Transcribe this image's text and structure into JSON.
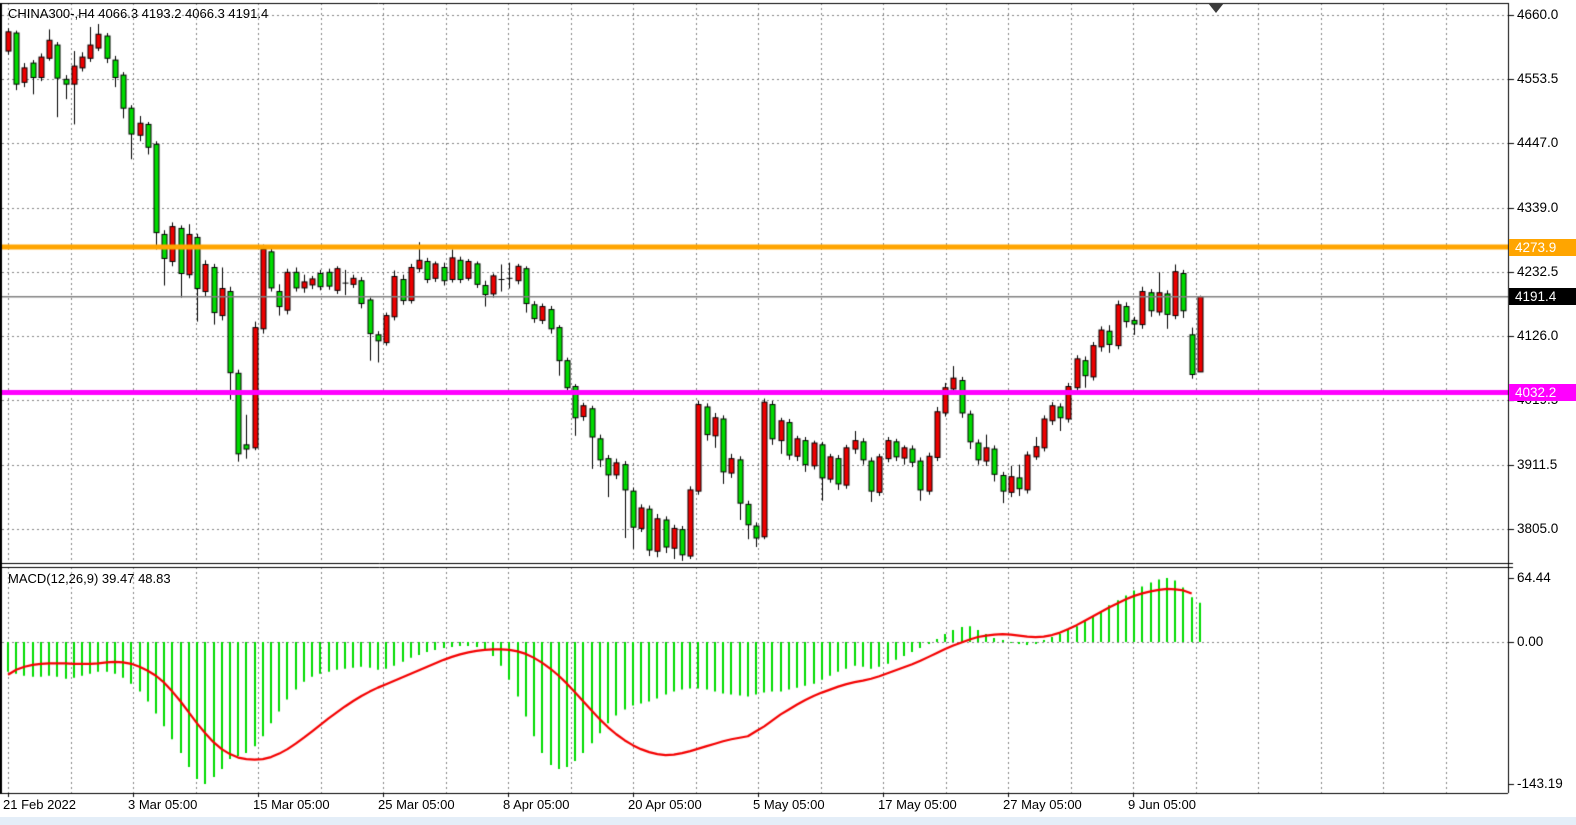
{
  "window": {
    "symbol_title": "CHINA300-,H4  4066.3 4193.2 4066.3 4191.4",
    "macd_label": "MACD(12,26,9) 39.47 48.83"
  },
  "colors": {
    "background": "#FFFFFF",
    "grid": "#848484",
    "bull_candle": "#EE0000",
    "bear_candle": "#00DC00",
    "candle_outline": "#000000",
    "macd_histogram": "#00DC00",
    "macd_signal": "#F40000",
    "resistance_line": "#FFA500",
    "support_line": "#FF00FF",
    "current_price_line": "#808080",
    "current_price_box": "#000000",
    "box_text": "#FFFFFF"
  },
  "axes": {
    "price_labels": [
      {
        "text": "4660.0",
        "price": 4660.0
      },
      {
        "text": "4553.5",
        "price": 4553.5
      },
      {
        "text": "4447.0",
        "price": 4447.0
      },
      {
        "text": "4339.0",
        "price": 4339.0
      },
      {
        "text": "4232.5",
        "price": 4232.5
      },
      {
        "text": "4126.0",
        "price": 4126.0
      },
      {
        "text": "4019.5",
        "price": 4019.5
      },
      {
        "text": "3911.5",
        "price": 3911.5
      },
      {
        "text": "3805.0",
        "price": 3805.0
      }
    ],
    "macd_labels": [
      {
        "text": "64.44",
        "value": 64.44
      },
      {
        "text": "0.00",
        "value": 0.0
      },
      {
        "text": "-143.19",
        "value": -143.19
      }
    ],
    "date_labels": [
      "21 Feb 2022",
      "3 Mar 05:00",
      "15 Mar 05:00",
      "25 Mar 05:00",
      "8 Apr 05:00",
      "20 Apr 05:00",
      "5 May 05:00",
      "17 May 05:00",
      "27 May 05:00",
      "9 Jun 05:00"
    ]
  },
  "hlines": {
    "resistance": {
      "price": 4273.9,
      "label": "4273.9",
      "color": "#FFA500"
    },
    "current": {
      "price": 4191.4,
      "label": "4191.4",
      "color": "#000000"
    },
    "support": {
      "price": 4032.2,
      "label": "4032.2",
      "color": "#FF00FF"
    }
  },
  "chart_data": {
    "type": "candlestick",
    "symbol": "CHINA300-",
    "timeframe": "H4",
    "title": "CHINA300-,H4",
    "current_bar": {
      "open": 4066.3,
      "high": 4193.2,
      "low": 4066.3,
      "close": 4191.4
    },
    "price_axis_range": [
      3805.0,
      4660.0
    ],
    "x_axis_ticks": [
      "21 Feb 2022",
      "3 Mar 05:00",
      "15 Mar 05:00",
      "25 Mar 05:00",
      "8 Apr 05:00",
      "20 Apr 05:00",
      "5 May 05:00",
      "17 May 05:00",
      "27 May 05:00",
      "9 Jun 05:00"
    ],
    "grid": true,
    "color_convention": "red body = bullish, green body = bearish",
    "candles": [
      [
        4600,
        4638,
        4594,
        4632,
        "r"
      ],
      [
        4630,
        4634,
        4535,
        4545,
        "g"
      ],
      [
        4548,
        4580,
        4540,
        4572,
        "r"
      ],
      [
        4580,
        4585,
        4528,
        4556,
        "g"
      ],
      [
        4556,
        4596,
        4550,
        4590,
        "r"
      ],
      [
        4588,
        4636,
        4584,
        4618,
        "r"
      ],
      [
        4610,
        4615,
        4490,
        4555,
        "g"
      ],
      [
        4553,
        4560,
        4520,
        4545,
        "g"
      ],
      [
        4545,
        4600,
        4478,
        4575,
        "r"
      ],
      [
        4572,
        4598,
        4566,
        4590,
        "r"
      ],
      [
        4588,
        4640,
        4582,
        4610,
        "r"
      ],
      [
        4605,
        4645,
        4600,
        4628,
        "r"
      ],
      [
        4625,
        4630,
        4580,
        4588,
        "g"
      ],
      [
        4585,
        4592,
        4540,
        4556,
        "g"
      ],
      [
        4560,
        4565,
        4488,
        4505,
        "g"
      ],
      [
        4505,
        4510,
        4420,
        4462,
        "g"
      ],
      [
        4460,
        4492,
        4450,
        4480,
        "r"
      ],
      [
        4478,
        4482,
        4428,
        4440,
        "g"
      ],
      [
        4445,
        4450,
        4270,
        4298,
        "g"
      ],
      [
        4295,
        4302,
        4210,
        4255,
        "g"
      ],
      [
        4250,
        4315,
        4242,
        4308,
        "r"
      ],
      [
        4305,
        4310,
        4190,
        4230,
        "g"
      ],
      [
        4228,
        4312,
        4222,
        4295,
        "r"
      ],
      [
        4290,
        4296,
        4150,
        4205,
        "g"
      ],
      [
        4200,
        4252,
        4192,
        4245,
        "r"
      ],
      [
        4240,
        4246,
        4145,
        4165,
        "g"
      ],
      [
        4160,
        4240,
        4152,
        4205,
        "r"
      ],
      [
        4200,
        4208,
        4020,
        4065,
        "g"
      ],
      [
        4064,
        4070,
        3917,
        3930,
        "g"
      ],
      [
        3945,
        3995,
        3922,
        3938,
        "g"
      ],
      [
        3940,
        4150,
        3936,
        4140,
        "r"
      ],
      [
        4138,
        4278,
        4130,
        4270,
        "r"
      ],
      [
        4266,
        4272,
        4200,
        4206,
        "g"
      ],
      [
        4200,
        4212,
        4160,
        4175,
        "g"
      ],
      [
        4169,
        4238,
        4162,
        4232,
        "r"
      ],
      [
        4232,
        4240,
        4200,
        4206,
        "g"
      ],
      [
        4206,
        4228,
        4198,
        4216,
        "r"
      ],
      [
        4211,
        4226,
        4204,
        4221,
        "r"
      ],
      [
        4230,
        4236,
        4202,
        4208,
        "g"
      ],
      [
        4232,
        4238,
        4203,
        4209,
        "g"
      ],
      [
        4202,
        4242,
        4196,
        4238,
        "r"
      ],
      [
        4214,
        4236,
        4194,
        4214,
        "k"
      ],
      [
        4212,
        4228,
        4206,
        4222,
        "r"
      ],
      [
        4218,
        4224,
        4172,
        4180,
        "g"
      ],
      [
        4186,
        4190,
        4085,
        4130,
        "g"
      ],
      [
        4128,
        4134,
        4082,
        4118,
        "g"
      ],
      [
        4115,
        4165,
        4110,
        4160,
        "r"
      ],
      [
        4158,
        4235,
        4152,
        4225,
        "r"
      ],
      [
        4220,
        4228,
        4178,
        4185,
        "g"
      ],
      [
        4185,
        4246,
        4180,
        4240,
        "r"
      ],
      [
        4238,
        4282,
        4232,
        4252,
        "r"
      ],
      [
        4250,
        4256,
        4214,
        4220,
        "g"
      ],
      [
        4222,
        4250,
        4216,
        4246,
        "r"
      ],
      [
        4240,
        4248,
        4210,
        4218,
        "g"
      ],
      [
        4220,
        4270,
        4215,
        4256,
        "r"
      ],
      [
        4252,
        4258,
        4214,
        4220,
        "g"
      ],
      [
        4222,
        4254,
        4218,
        4250,
        "r"
      ],
      [
        4246,
        4250,
        4206,
        4212,
        "g"
      ],
      [
        4210,
        4218,
        4175,
        4195,
        "g"
      ],
      [
        4196,
        4230,
        4190,
        4226,
        "r"
      ],
      [
        4220,
        4245,
        4200,
        4220,
        "k"
      ],
      [
        4222,
        4248,
        4205,
        4222,
        "k"
      ],
      [
        4218,
        4246,
        4212,
        4242,
        "r"
      ],
      [
        4238,
        4242,
        4165,
        4180,
        "g"
      ],
      [
        4178,
        4184,
        4148,
        4155,
        "g"
      ],
      [
        4152,
        4180,
        4146,
        4175,
        "r"
      ],
      [
        4170,
        4176,
        4130,
        4138,
        "g"
      ],
      [
        4140,
        4144,
        4060,
        4085,
        "g"
      ],
      [
        4085,
        4090,
        4032,
        4040,
        "g"
      ],
      [
        4042,
        4046,
        3960,
        3990,
        "g"
      ],
      [
        3992,
        4015,
        3985,
        4010,
        "r"
      ],
      [
        4005,
        4010,
        3905,
        3958,
        "g"
      ],
      [
        3955,
        3962,
        3908,
        3920,
        "g"
      ],
      [
        3922,
        3928,
        3858,
        3895,
        "g"
      ],
      [
        3895,
        3922,
        3888,
        3915,
        "r"
      ],
      [
        3912,
        3918,
        3790,
        3870,
        "g"
      ],
      [
        3868,
        3874,
        3772,
        3808,
        "g"
      ],
      [
        3806,
        3846,
        3800,
        3840,
        "r"
      ],
      [
        3838,
        3844,
        3760,
        3770,
        "g"
      ],
      [
        3768,
        3830,
        3758,
        3822,
        "r"
      ],
      [
        3820,
        3826,
        3765,
        3775,
        "g"
      ],
      [
        3773,
        3812,
        3755,
        3806,
        "r"
      ],
      [
        3804,
        3810,
        3752,
        3762,
        "g"
      ],
      [
        3760,
        3876,
        3755,
        3870,
        "r"
      ],
      [
        3868,
        4018,
        3862,
        4012,
        "r"
      ],
      [
        4008,
        4014,
        3952,
        3962,
        "g"
      ],
      [
        3960,
        3998,
        3940,
        3990,
        "r"
      ],
      [
        3988,
        3994,
        3880,
        3900,
        "g"
      ],
      [
        3898,
        3930,
        3890,
        3922,
        "r"
      ],
      [
        3920,
        3926,
        3820,
        3848,
        "g"
      ],
      [
        3846,
        3852,
        3788,
        3812,
        "g"
      ],
      [
        3810,
        3816,
        3775,
        3790,
        "g"
      ],
      [
        3792,
        4022,
        3788,
        4016,
        "r"
      ],
      [
        4012,
        4018,
        3945,
        3955,
        "g"
      ],
      [
        3952,
        3990,
        3930,
        3985,
        "r"
      ],
      [
        3982,
        3988,
        3920,
        3928,
        "g"
      ],
      [
        3926,
        3960,
        3918,
        3955,
        "r"
      ],
      [
        3952,
        3958,
        3900,
        3912,
        "g"
      ],
      [
        3910,
        3952,
        3904,
        3948,
        "r"
      ],
      [
        3945,
        3950,
        3852,
        3890,
        "g"
      ],
      [
        3888,
        3930,
        3882,
        3925,
        "r"
      ],
      [
        3922,
        3928,
        3870,
        3880,
        "g"
      ],
      [
        3878,
        3945,
        3872,
        3940,
        "r"
      ],
      [
        3938,
        3968,
        3930,
        3952,
        "r"
      ],
      [
        3950,
        3956,
        3912,
        3920,
        "g"
      ],
      [
        3918,
        3924,
        3850,
        3868,
        "g"
      ],
      [
        3866,
        3930,
        3860,
        3925,
        "r"
      ],
      [
        3922,
        3958,
        3916,
        3952,
        "r"
      ],
      [
        3950,
        3955,
        3918,
        3925,
        "g"
      ],
      [
        3923,
        3944,
        3912,
        3940,
        "r"
      ],
      [
        3938,
        3944,
        3908,
        3916,
        "g"
      ],
      [
        3918,
        3924,
        3852,
        3870,
        "g"
      ],
      [
        3868,
        3932,
        3862,
        3926,
        "r"
      ],
      [
        3924,
        4008,
        3918,
        4000,
        "r"
      ],
      [
        3998,
        4048,
        3992,
        4040,
        "r"
      ],
      [
        4038,
        4076,
        4032,
        4056,
        "r"
      ],
      [
        4052,
        4058,
        3990,
        3998,
        "g"
      ],
      [
        3996,
        4002,
        3938,
        3950,
        "g"
      ],
      [
        3948,
        3954,
        3912,
        3920,
        "g"
      ],
      [
        3918,
        3962,
        3910,
        3940,
        "r"
      ],
      [
        3938,
        3944,
        3884,
        3896,
        "g"
      ],
      [
        3894,
        3900,
        3848,
        3868,
        "g"
      ],
      [
        3866,
        3910,
        3858,
        3892,
        "r"
      ],
      [
        3890,
        3912,
        3860,
        3872,
        "g"
      ],
      [
        3870,
        3934,
        3864,
        3928,
        "r"
      ],
      [
        3925,
        3958,
        3920,
        3942,
        "r"
      ],
      [
        3940,
        3994,
        3934,
        3988,
        "r"
      ],
      [
        3985,
        4016,
        3978,
        4010,
        "r"
      ],
      [
        4008,
        4014,
        3968,
        3990,
        "g"
      ],
      [
        3988,
        4048,
        3982,
        4042,
        "r"
      ],
      [
        4040,
        4094,
        4034,
        4088,
        "r"
      ],
      [
        4085,
        4092,
        4040,
        4060,
        "g"
      ],
      [
        4058,
        4116,
        4052,
        4110,
        "r"
      ],
      [
        4108,
        4142,
        4100,
        4136,
        "r"
      ],
      [
        4134,
        4144,
        4098,
        4112,
        "g"
      ],
      [
        4110,
        4185,
        4104,
        4178,
        "r"
      ],
      [
        4175,
        4182,
        4140,
        4150,
        "g"
      ],
      [
        4152,
        4158,
        4128,
        4146,
        "g"
      ],
      [
        4145,
        4208,
        4138,
        4200,
        "r"
      ],
      [
        4198,
        4204,
        4158,
        4168,
        "g"
      ],
      [
        4166,
        4232,
        4160,
        4198,
        "r"
      ],
      [
        4196,
        4202,
        4138,
        4162,
        "g"
      ],
      [
        4160,
        4245,
        4154,
        4233,
        "r"
      ],
      [
        4230,
        4236,
        4156,
        4168,
        "g"
      ],
      [
        4128,
        4140,
        4055,
        4062,
        "g"
      ],
      [
        4066.3,
        4193.2,
        4066.3,
        4191.4,
        "r"
      ]
    ],
    "indicator": {
      "name": "MACD",
      "params": [
        12,
        26,
        9
      ],
      "macd_last": 39.47,
      "signal_last": 48.83,
      "axis_values": [
        64.44,
        0.0,
        -143.19
      ],
      "histogram": [
        -30,
        -32,
        -34,
        -35,
        -35,
        -34,
        -35,
        -37,
        -36,
        -34,
        -32,
        -30,
        -30,
        -32,
        -36,
        -42,
        -50,
        -60,
        -72,
        -85,
        -98,
        -112,
        -126,
        -138,
        -143.19,
        -136,
        -128,
        -118,
        -115,
        -112,
        -105,
        -95,
        -82,
        -70,
        -58,
        -48,
        -40,
        -35,
        -32,
        -30,
        -28,
        -27,
        -26,
        -25,
        -26,
        -28,
        -27,
        -24,
        -20,
        -16,
        -13,
        -10,
        -8,
        -6,
        -5,
        -4,
        -4,
        -5,
        -8,
        -14,
        -24,
        -38,
        -55,
        -75,
        -95,
        -112,
        -124,
        -128,
        -126,
        -120,
        -112,
        -102,
        -92,
        -82,
        -74,
        -68,
        -64,
        -62,
        -60,
        -57,
        -53,
        -50,
        -48,
        -47,
        -47,
        -48,
        -50,
        -52,
        -53,
        -54,
        -55,
        -53,
        -51,
        -50,
        -50,
        -48,
        -46,
        -44,
        -42,
        -38,
        -34,
        -30,
        -27,
        -24,
        -25,
        -27,
        -25,
        -22,
        -18,
        -14,
        -10,
        -6,
        -2,
        3,
        8,
        12,
        15,
        16,
        12,
        8,
        4,
        2,
        -1,
        -2,
        -3,
        -2,
        2,
        5,
        8,
        12,
        16,
        21,
        26,
        31,
        37,
        42,
        47,
        52,
        56,
        60,
        63,
        64.44,
        62,
        55,
        45,
        39.47
      ],
      "signal": [
        -33,
        -28,
        -25,
        -23,
        -22,
        -21.5,
        -21.5,
        -21.5,
        -22,
        -22,
        -22,
        -21.5,
        -20.5,
        -20,
        -20.5,
        -22,
        -25,
        -29,
        -34,
        -41,
        -50,
        -60,
        -71,
        -82,
        -92,
        -101,
        -108,
        -113,
        -116.5,
        -118,
        -118.5,
        -118,
        -116,
        -112.5,
        -108,
        -102.5,
        -96.5,
        -90,
        -83.5,
        -77,
        -71,
        -65,
        -59.5,
        -54.5,
        -50,
        -46,
        -42.5,
        -39,
        -35.5,
        -32,
        -28.5,
        -25,
        -21.5,
        -18,
        -15,
        -12.5,
        -10.5,
        -9,
        -8,
        -7.5,
        -7.5,
        -8,
        -9.5,
        -12,
        -16,
        -21,
        -27,
        -34,
        -42,
        -51,
        -60,
        -69,
        -78,
        -86,
        -93,
        -99,
        -104,
        -108,
        -111,
        -113,
        -114,
        -113.5,
        -112,
        -110,
        -107.5,
        -105,
        -102.5,
        -100,
        -98,
        -96.5,
        -95,
        -90,
        -85,
        -79,
        -73,
        -68,
        -63,
        -58.5,
        -54.5,
        -51,
        -48,
        -45,
        -42.5,
        -40.5,
        -39,
        -37,
        -34.5,
        -31.5,
        -28.5,
        -25.5,
        -22.5,
        -19,
        -15,
        -11,
        -7,
        -3.5,
        -0.5,
        2.5,
        5,
        6.5,
        7.5,
        8,
        7.5,
        6.5,
        5.5,
        5,
        5.5,
        7,
        9.5,
        13,
        17,
        21.5,
        26,
        30.5,
        35,
        39,
        43,
        46.5,
        49,
        51,
        52.5,
        53.5,
        53,
        52,
        48.83
      ]
    }
  }
}
